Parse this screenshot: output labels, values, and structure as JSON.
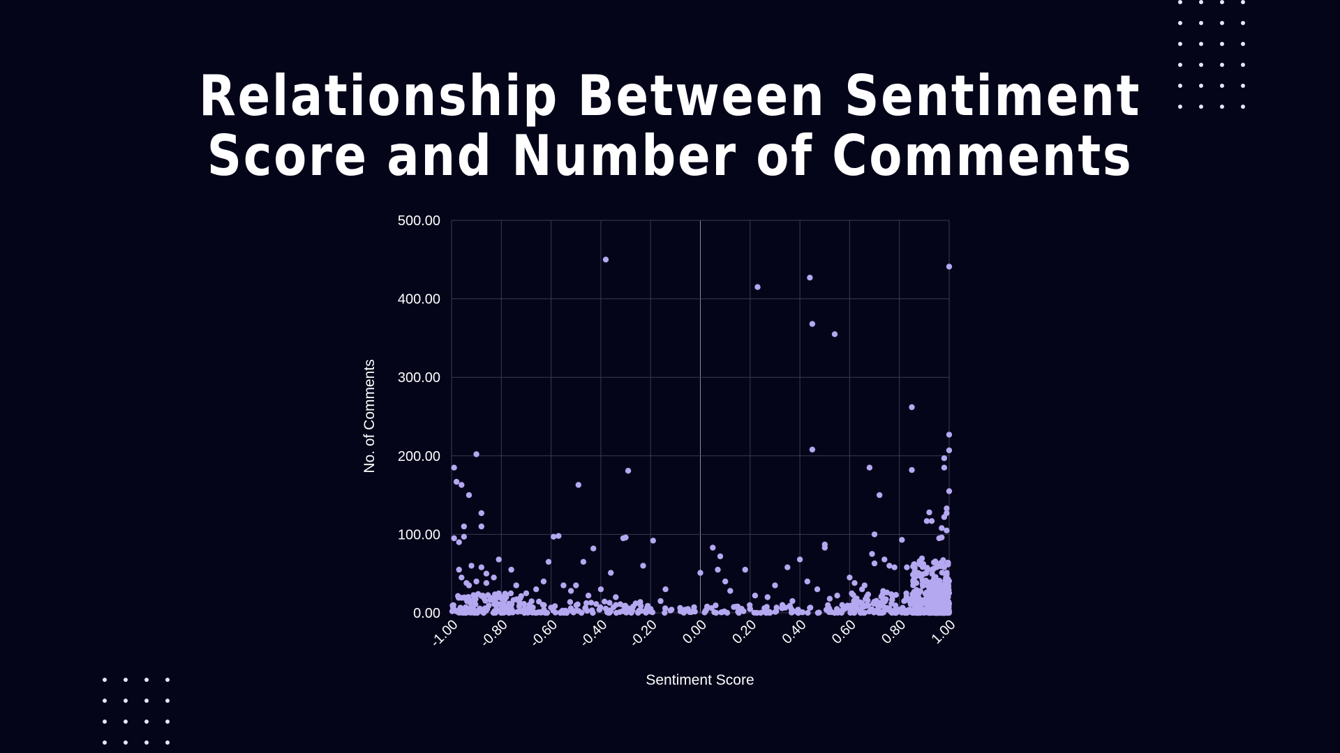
{
  "colors": {
    "background": "#05051a",
    "point": "#b4a8f0",
    "grid": "#3a3a52",
    "text": "#ffffff"
  },
  "decor": {
    "top_right": "dot-grid-pattern",
    "bottom_left": "dot-grid-pattern"
  },
  "chart_data": {
    "type": "scatter",
    "title": "Relationship Between Sentiment Score and Number of Comments",
    "title_lines": [
      "Relationship Between Sentiment",
      "Score and Number of Comments"
    ],
    "xlabel": "Sentiment Score",
    "ylabel": "No. of Comments",
    "xlim": [
      -1.0,
      1.0
    ],
    "ylim": [
      0,
      500
    ],
    "x_ticks": [
      "-1.00",
      "-0.80",
      "-0.60",
      "-0.40",
      "-0.20",
      "0.00",
      "0.20",
      "0.40",
      "0.60",
      "0.80",
      "1.00"
    ],
    "x_tick_values": [
      -1.0,
      -0.8,
      -0.6,
      -0.4,
      -0.2,
      0.0,
      0.2,
      0.4,
      0.6,
      0.8,
      1.0
    ],
    "y_ticks": [
      "0.00",
      "100.00",
      "200.00",
      "300.00",
      "400.00",
      "500.00"
    ],
    "y_tick_values": [
      0,
      100,
      200,
      300,
      400,
      500
    ],
    "grid": true,
    "points": [
      [
        -0.38,
        450
      ],
      [
        0.23,
        415
      ],
      [
        0.44,
        427
      ],
      [
        0.45,
        368
      ],
      [
        0.54,
        355
      ],
      [
        1.0,
        441
      ],
      [
        0.45,
        208
      ],
      [
        0.85,
        262
      ],
      [
        0.85,
        182
      ],
      [
        1.0,
        227
      ],
      [
        1.0,
        207
      ],
      [
        0.98,
        197
      ],
      [
        0.98,
        185
      ],
      [
        0.68,
        185
      ],
      [
        -0.9,
        202
      ],
      [
        -0.99,
        185
      ],
      [
        -0.98,
        167
      ],
      [
        -0.96,
        163
      ],
      [
        -0.93,
        150
      ],
      [
        -0.88,
        127
      ],
      [
        -0.88,
        110
      ],
      [
        -0.95,
        110
      ],
      [
        -0.49,
        163
      ],
      [
        -0.29,
        181
      ],
      [
        -0.3,
        96
      ],
      [
        -0.31,
        95
      ],
      [
        -0.19,
        92
      ],
      [
        -0.57,
        98
      ],
      [
        -0.59,
        97
      ],
      [
        -0.43,
        82
      ],
      [
        0.05,
        83
      ],
      [
        0.08,
        72
      ],
      [
        0.5,
        87
      ],
      [
        0.5,
        83
      ],
      [
        0.72,
        150
      ],
      [
        0.7,
        100
      ],
      [
        0.92,
        128
      ],
      [
        0.91,
        117
      ],
      [
        0.93,
        117
      ],
      [
        1.0,
        155
      ],
      [
        0.99,
        133
      ],
      [
        0.99,
        127
      ],
      [
        0.98,
        122
      ],
      [
        0.96,
        95
      ],
      [
        0.97,
        108
      ],
      [
        0.99,
        105
      ],
      [
        0.97,
        96
      ],
      [
        0.81,
        93
      ],
      [
        0.4,
        68
      ],
      [
        0.0,
        51
      ],
      [
        -0.99,
        95
      ],
      [
        -0.95,
        97
      ],
      [
        -0.97,
        90
      ],
      [
        -0.81,
        68
      ],
      [
        -0.76,
        55
      ],
      [
        -0.47,
        65
      ],
      [
        -0.61,
        65
      ],
      [
        -0.36,
        51
      ],
      [
        -0.23,
        60
      ],
      [
        0.07,
        55
      ],
      [
        0.18,
        55
      ],
      [
        0.35,
        58
      ],
      [
        0.69,
        75
      ],
      [
        0.7,
        63
      ],
      [
        0.74,
        68
      ],
      [
        0.76,
        60
      ],
      [
        0.78,
        58
      ],
      [
        0.83,
        58
      ],
      [
        0.86,
        62
      ],
      [
        0.88,
        50
      ],
      [
        0.6,
        45
      ],
      [
        0.62,
        38
      ],
      [
        0.65,
        30
      ],
      [
        0.66,
        35
      ],
      [
        0.55,
        22
      ],
      [
        0.52,
        18
      ],
      [
        0.47,
        30
      ],
      [
        0.43,
        40
      ],
      [
        0.3,
        35
      ],
      [
        0.27,
        20
      ],
      [
        0.22,
        22
      ],
      [
        0.12,
        28
      ],
      [
        0.1,
        40
      ],
      [
        -0.05,
        5
      ],
      [
        -0.12,
        3
      ],
      [
        -0.14,
        30
      ],
      [
        -0.16,
        15
      ],
      [
        -0.26,
        12
      ],
      [
        -0.27,
        8
      ],
      [
        -0.34,
        20
      ],
      [
        -0.4,
        30
      ],
      [
        -0.45,
        22
      ],
      [
        -0.5,
        35
      ],
      [
        -0.52,
        28
      ],
      [
        -0.55,
        35
      ],
      [
        -0.63,
        40
      ],
      [
        -0.66,
        30
      ],
      [
        -0.7,
        25
      ],
      [
        -0.74,
        35
      ],
      [
        -0.78,
        20
      ],
      [
        -0.83,
        45
      ],
      [
        -0.86,
        38
      ],
      [
        -0.9,
        40
      ],
      [
        -0.93,
        35
      ],
      [
        -0.96,
        45
      ],
      [
        -0.88,
        58
      ],
      [
        -0.92,
        60
      ],
      [
        -0.86,
        50
      ],
      [
        -0.97,
        55
      ],
      [
        -0.94,
        38
      ],
      [
        0.33,
        10
      ],
      [
        0.37,
        15
      ],
      [
        0.2,
        5
      ],
      [
        0.15,
        8
      ],
      [
        0.02,
        2
      ],
      [
        -0.08,
        2
      ],
      [
        -0.2,
        5
      ],
      [
        -0.3,
        3
      ],
      [
        0.57,
        10
      ],
      [
        0.58,
        5
      ]
    ],
    "dense_bands": [
      {
        "x_range": [
          -1.0,
          -0.7
        ],
        "y_max": 25,
        "count": 140
      },
      {
        "x_range": [
          -0.7,
          -0.2
        ],
        "y_max": 15,
        "count": 90
      },
      {
        "x_range": [
          -0.2,
          0.6
        ],
        "y_max": 10,
        "count": 80
      },
      {
        "x_range": [
          0.6,
          0.85
        ],
        "y_max": 30,
        "count": 110
      },
      {
        "x_range": [
          0.85,
          1.0
        ],
        "y_max": 70,
        "count": 260
      },
      {
        "x_range": [
          0.92,
          1.0
        ],
        "y_max": 40,
        "count": 200
      }
    ]
  }
}
